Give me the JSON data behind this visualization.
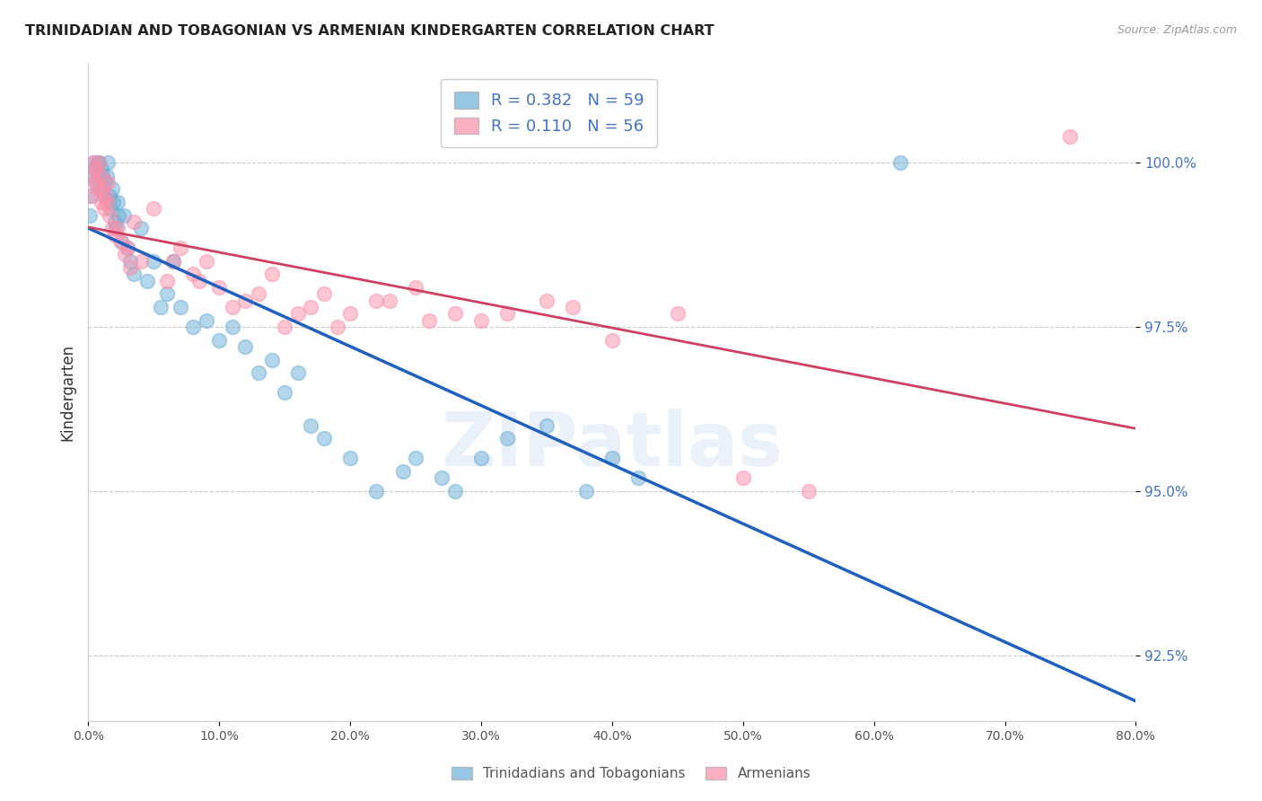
{
  "title": "TRINIDADIAN AND TOBAGONIAN VS ARMENIAN KINDERGARTEN CORRELATION CHART",
  "source": "Source: ZipAtlas.com",
  "xlabel": "",
  "ylabel": "Kindergarten",
  "watermark": "ZIPatlas",
  "xlim": [
    0.0,
    80.0
  ],
  "ylim": [
    91.5,
    101.5
  ],
  "xticks": [
    0.0,
    10.0,
    20.0,
    30.0,
    40.0,
    50.0,
    60.0,
    70.0,
    80.0
  ],
  "yticks": [
    92.5,
    95.0,
    97.5,
    100.0
  ],
  "blue_label": "Trinidadians and Tobagonians",
  "pink_label": "Armenians",
  "blue_R": 0.382,
  "blue_N": 59,
  "pink_R": 0.11,
  "pink_N": 56,
  "blue_color": "#6baed6",
  "pink_color": "#fc8fa8",
  "trend_blue": "#2060c0",
  "trend_pink": "#d04060",
  "blue_x": [
    0.1,
    0.2,
    0.3,
    0.4,
    0.5,
    0.6,
    0.7,
    0.8,
    0.9,
    1.0,
    1.1,
    1.2,
    1.3,
    1.4,
    1.5,
    1.6,
    1.7,
    1.8,
    1.9,
    2.0,
    2.1,
    2.2,
    2.3,
    2.5,
    2.7,
    3.0,
    3.2,
    3.5,
    4.0,
    4.5,
    5.0,
    5.5,
    6.0,
    6.5,
    7.0,
    8.0,
    9.0,
    10.0,
    11.0,
    12.0,
    13.0,
    14.0,
    15.0,
    16.0,
    17.0,
    18.0,
    20.0,
    22.0,
    24.0,
    25.0,
    27.0,
    28.0,
    30.0,
    32.0,
    35.0,
    38.0,
    40.0,
    42.0,
    62.0
  ],
  "blue_y": [
    99.2,
    99.5,
    99.8,
    100.0,
    99.9,
    99.7,
    100.0,
    100.0,
    99.6,
    99.9,
    99.8,
    99.5,
    99.7,
    99.8,
    100.0,
    99.5,
    99.3,
    99.6,
    99.4,
    99.1,
    99.0,
    99.4,
    99.2,
    98.8,
    99.2,
    98.7,
    98.5,
    98.3,
    99.0,
    98.2,
    98.5,
    97.8,
    98.0,
    98.5,
    97.8,
    97.5,
    97.6,
    97.3,
    97.5,
    97.2,
    96.8,
    97.0,
    96.5,
    96.8,
    96.0,
    95.8,
    95.5,
    95.0,
    95.3,
    95.5,
    95.2,
    95.0,
    95.5,
    95.8,
    96.0,
    95.0,
    95.5,
    95.2,
    100.0
  ],
  "pink_x": [
    0.2,
    0.3,
    0.4,
    0.5,
    0.6,
    0.7,
    0.8,
    0.9,
    1.0,
    1.1,
    1.2,
    1.3,
    1.4,
    1.5,
    1.6,
    1.8,
    2.0,
    2.2,
    2.5,
    3.0,
    3.5,
    4.0,
    5.0,
    6.0,
    7.0,
    8.0,
    9.0,
    10.0,
    12.0,
    14.0,
    16.0,
    18.0,
    20.0,
    23.0,
    25.0,
    28.0,
    30.0,
    35.0,
    40.0,
    45.0,
    50.0,
    55.0,
    75.0,
    2.8,
    3.2,
    6.5,
    8.5,
    11.0,
    13.0,
    15.0,
    17.0,
    19.0,
    22.0,
    26.0,
    32.0,
    37.0
  ],
  "pink_y": [
    99.5,
    99.8,
    100.0,
    99.7,
    99.9,
    99.6,
    100.0,
    99.8,
    99.4,
    99.6,
    99.3,
    99.5,
    99.4,
    99.7,
    99.2,
    99.0,
    98.9,
    99.0,
    98.8,
    98.7,
    99.1,
    98.5,
    99.3,
    98.2,
    98.7,
    98.3,
    98.5,
    98.1,
    97.9,
    98.3,
    97.7,
    98.0,
    97.7,
    97.9,
    98.1,
    97.7,
    97.6,
    97.9,
    97.3,
    97.7,
    95.2,
    95.0,
    100.4,
    98.6,
    98.4,
    98.5,
    98.2,
    97.8,
    98.0,
    97.5,
    97.8,
    97.5,
    97.9,
    97.6,
    97.7,
    97.8
  ]
}
